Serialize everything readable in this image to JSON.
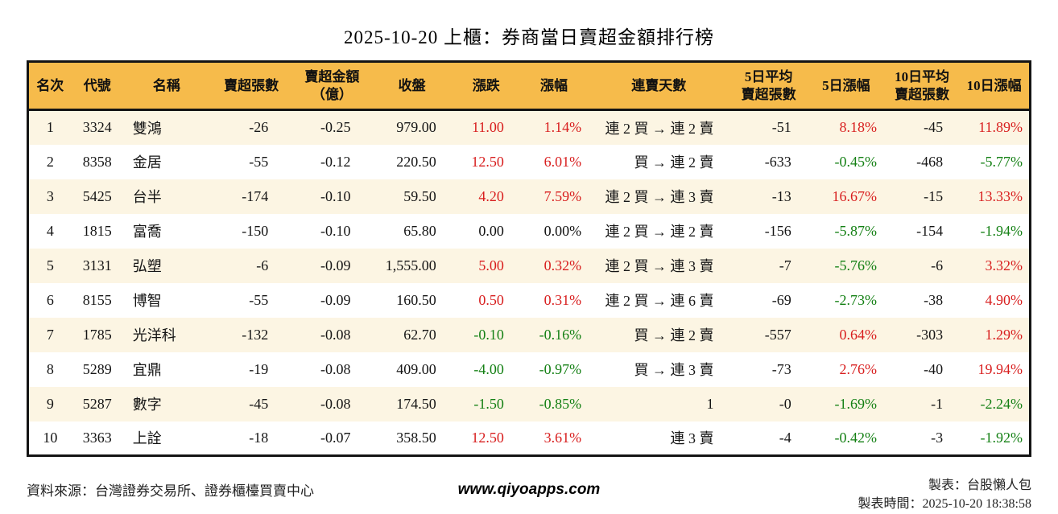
{
  "title": "2025-10-20 上櫃：券商當日賣超金額排行榜",
  "colors": {
    "up_red": "#d81e1e",
    "down_green": "#148014",
    "header_bg": "#f6bb4b",
    "row_alt_bg": "#fcf5e3",
    "border": "#141414"
  },
  "table": {
    "headers": [
      {
        "key": "rank",
        "label": "名次"
      },
      {
        "key": "code",
        "label": "代號"
      },
      {
        "key": "name",
        "label": "名稱"
      },
      {
        "key": "vol",
        "label": "賣超張數"
      },
      {
        "key": "amt",
        "label": "賣超金額\n（億）"
      },
      {
        "key": "close",
        "label": "收盤"
      },
      {
        "key": "chg",
        "label": "漲跌"
      },
      {
        "key": "chgp",
        "label": "漲幅"
      },
      {
        "key": "streak",
        "label": "連賣天數"
      },
      {
        "key": "avg5",
        "label": "5日平均\n賣超張數"
      },
      {
        "key": "p5",
        "label": "5日漲幅"
      },
      {
        "key": "avg10",
        "label": "10日平均\n賣超張數"
      },
      {
        "key": "p10",
        "label": "10日漲幅"
      }
    ],
    "rows": [
      {
        "rank": "1",
        "code": "3324",
        "name": "雙鴻",
        "vol": "-26",
        "amt": "-0.25",
        "close": "979.00",
        "chg": "11.00",
        "chg_color": "red",
        "chgp": "1.14%",
        "chgp_color": "red",
        "streak": "連 2 買 → 連 2 賣",
        "avg5": "-51",
        "p5": "8.18%",
        "p5_color": "red",
        "avg10": "-45",
        "p10": "11.89%",
        "p10_color": "red"
      },
      {
        "rank": "2",
        "code": "8358",
        "name": "金居",
        "vol": "-55",
        "amt": "-0.12",
        "close": "220.50",
        "chg": "12.50",
        "chg_color": "red",
        "chgp": "6.01%",
        "chgp_color": "red",
        "streak": "買 → 連 2 賣",
        "avg5": "-633",
        "p5": "-0.45%",
        "p5_color": "green",
        "avg10": "-468",
        "p10": "-5.77%",
        "p10_color": "green"
      },
      {
        "rank": "3",
        "code": "5425",
        "name": "台半",
        "vol": "-174",
        "amt": "-0.10",
        "close": "59.50",
        "chg": "4.20",
        "chg_color": "red",
        "chgp": "7.59%",
        "chgp_color": "red",
        "streak": "連 2 買 → 連 3 賣",
        "avg5": "-13",
        "p5": "16.67%",
        "p5_color": "red",
        "avg10": "-15",
        "p10": "13.33%",
        "p10_color": "red"
      },
      {
        "rank": "4",
        "code": "1815",
        "name": "富喬",
        "vol": "-150",
        "amt": "-0.10",
        "close": "65.80",
        "chg": "0.00",
        "chg_color": "flat",
        "chgp": "0.00%",
        "chgp_color": "flat",
        "streak": "連 2 買 → 連 2 賣",
        "avg5": "-156",
        "p5": "-5.87%",
        "p5_color": "green",
        "avg10": "-154",
        "p10": "-1.94%",
        "p10_color": "green"
      },
      {
        "rank": "5",
        "code": "3131",
        "name": "弘塑",
        "vol": "-6",
        "amt": "-0.09",
        "close": "1,555.00",
        "chg": "5.00",
        "chg_color": "red",
        "chgp": "0.32%",
        "chgp_color": "red",
        "streak": "連 2 買 → 連 3 賣",
        "avg5": "-7",
        "p5": "-5.76%",
        "p5_color": "green",
        "avg10": "-6",
        "p10": "3.32%",
        "p10_color": "red"
      },
      {
        "rank": "6",
        "code": "8155",
        "name": "博智",
        "vol": "-55",
        "amt": "-0.09",
        "close": "160.50",
        "chg": "0.50",
        "chg_color": "red",
        "chgp": "0.31%",
        "chgp_color": "red",
        "streak": "連 2 買 → 連 6 賣",
        "avg5": "-69",
        "p5": "-2.73%",
        "p5_color": "green",
        "avg10": "-38",
        "p10": "4.90%",
        "p10_color": "red"
      },
      {
        "rank": "7",
        "code": "1785",
        "name": "光洋科",
        "vol": "-132",
        "amt": "-0.08",
        "close": "62.70",
        "chg": "-0.10",
        "chg_color": "green",
        "chgp": "-0.16%",
        "chgp_color": "green",
        "streak": "買 → 連 2 賣",
        "avg5": "-557",
        "p5": "0.64%",
        "p5_color": "red",
        "avg10": "-303",
        "p10": "1.29%",
        "p10_color": "red"
      },
      {
        "rank": "8",
        "code": "5289",
        "name": "宜鼎",
        "vol": "-19",
        "amt": "-0.08",
        "close": "409.00",
        "chg": "-4.00",
        "chg_color": "green",
        "chgp": "-0.97%",
        "chgp_color": "green",
        "streak": "買 → 連 3 賣",
        "avg5": "-73",
        "p5": "2.76%",
        "p5_color": "red",
        "avg10": "-40",
        "p10": "19.94%",
        "p10_color": "red"
      },
      {
        "rank": "9",
        "code": "5287",
        "name": "數字",
        "vol": "-45",
        "amt": "-0.08",
        "close": "174.50",
        "chg": "-1.50",
        "chg_color": "green",
        "chgp": "-0.85%",
        "chgp_color": "green",
        "streak": "1",
        "avg5": "-0",
        "p5": "-1.69%",
        "p5_color": "green",
        "avg10": "-1",
        "p10": "-2.24%",
        "p10_color": "green"
      },
      {
        "rank": "10",
        "code": "3363",
        "name": "上詮",
        "vol": "-18",
        "amt": "-0.07",
        "close": "358.50",
        "chg": "12.50",
        "chg_color": "red",
        "chgp": "3.61%",
        "chgp_color": "red",
        "streak": "連 3 賣",
        "avg5": "-4",
        "p5": "-0.42%",
        "p5_color": "green",
        "avg10": "-3",
        "p10": "-1.92%",
        "p10_color": "green"
      }
    ]
  },
  "footer": {
    "source": "資料來源：台灣證券交易所、證券櫃檯買賣中心",
    "website": "www.qiyoapps.com",
    "credit": "製表：台股懶人包",
    "generated": "製表時間：2025-10-20 18:38:58"
  }
}
